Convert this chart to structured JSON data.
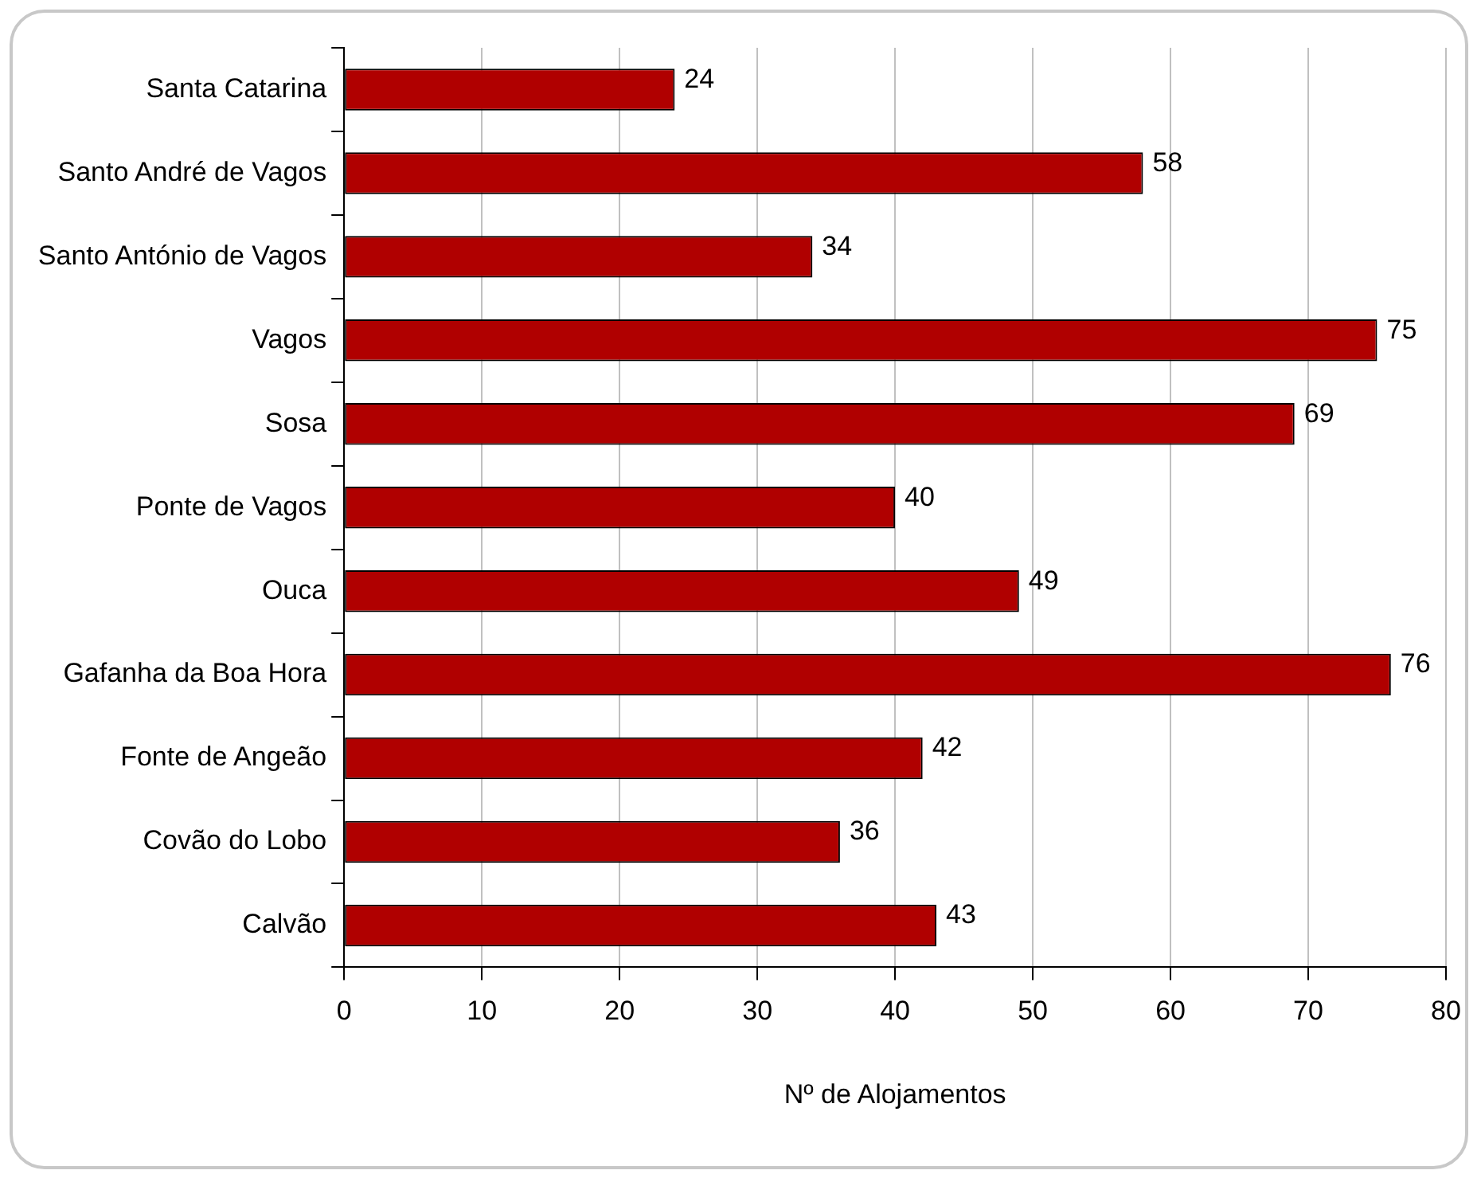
{
  "chart_data": {
    "type": "bar",
    "orientation": "horizontal",
    "xlabel": "Nº de Alojamentos",
    "categories": [
      "Santa Catarina",
      "Santo André de Vagos",
      "Santo António de Vagos",
      "Vagos",
      "Sosa",
      "Ponte de Vagos",
      "Ouca",
      "Gafanha da Boa Hora",
      "Fonte de Angeão",
      "Covão do Lobo",
      "Calvão"
    ],
    "values": [
      24,
      58,
      34,
      75,
      69,
      40,
      49,
      76,
      42,
      36,
      43
    ],
    "color": "#b00000",
    "xlim": [
      0,
      80
    ],
    "xticks": [
      0,
      10,
      20,
      30,
      40,
      50,
      60,
      70,
      80
    ],
    "grid": "x",
    "data_labels": true,
    "legend": false
  }
}
